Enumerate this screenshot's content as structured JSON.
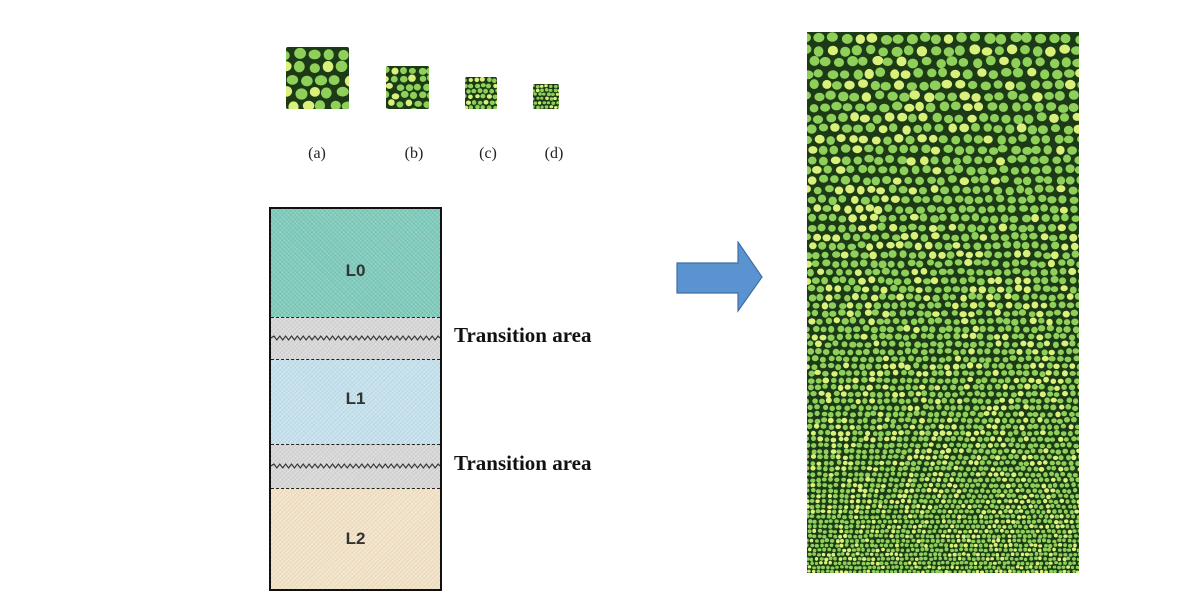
{
  "texture_samples": [
    {
      "caption": "(a)",
      "cell": 14
    },
    {
      "caption": "(b)",
      "cell": 9
    },
    {
      "caption": "(c)",
      "cell": 6
    },
    {
      "caption": "(d)",
      "cell": 4.5
    }
  ],
  "layers": {
    "l0": "L0",
    "l1": "L1",
    "l2": "L2",
    "transition_1": "Transition area",
    "transition_2": "Transition area"
  },
  "colors": {
    "l0": "#7fcbbb",
    "l1": "#c5e2ee",
    "l2": "#f3e3c8",
    "transition": "#d8d8d8",
    "arrow": "#5b93d0",
    "arrow_stroke": "#3d6fa5",
    "texture_bg": "#1c3a16",
    "texture_fg": "#8fd05a",
    "texture_hi": "#d9f07a"
  }
}
